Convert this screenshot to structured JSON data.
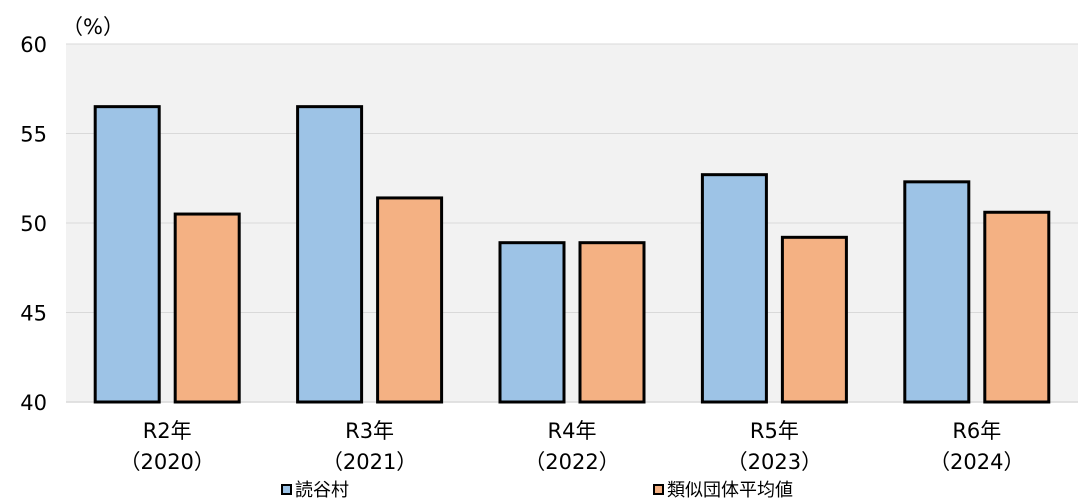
{
  "colors": {
    "series_0": "#9DC3E6",
    "series_1": "#F4B183",
    "plot_bg": "#F2F2F2",
    "gridline": "#D9D9D9",
    "bar_border": "#000000"
  },
  "chart_data": {
    "type": "bar",
    "unit_label": "（%）",
    "categories": [
      [
        "R2年",
        "（2020）"
      ],
      [
        "R3年",
        "（2021）"
      ],
      [
        "R4年",
        "（2022）"
      ],
      [
        "R5年",
        "（2023）"
      ],
      [
        "R6年",
        "（2024）"
      ]
    ],
    "series": [
      {
        "name": "読谷村",
        "values": [
          56.5,
          56.5,
          48.9,
          52.7,
          52.3
        ]
      },
      {
        "name": "類似団体平均値",
        "values": [
          50.5,
          51.4,
          48.9,
          49.2,
          50.6
        ]
      }
    ],
    "ylim": [
      40,
      60
    ],
    "yticks": [
      40,
      45,
      50,
      55,
      60
    ],
    "grid": true,
    "legend_position": "bottom"
  }
}
